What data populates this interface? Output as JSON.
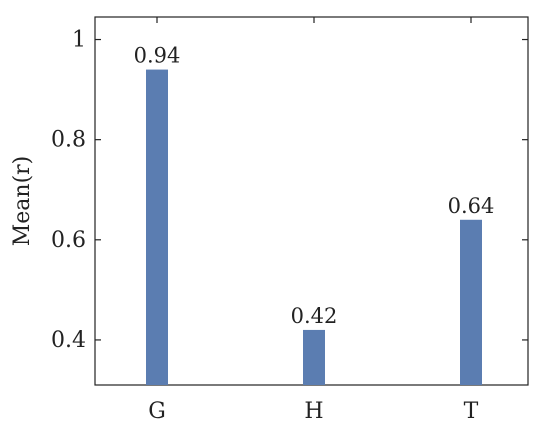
{
  "chart_data": {
    "type": "bar",
    "title": "",
    "xlabel": "",
    "ylabel": "Mean(r)",
    "categories": [
      "G",
      "H",
      "T"
    ],
    "values": [
      0.94,
      0.42,
      0.64
    ],
    "data_labels": [
      "0.94",
      "0.42",
      "0.64"
    ],
    "ylim": [
      0.31,
      1.045
    ],
    "yticks": [
      0.4,
      0.6,
      0.8,
      1.0
    ],
    "ytick_labels": [
      "0.4",
      "0.6",
      "0.8",
      "1"
    ],
    "grid": false,
    "legend": "none",
    "bar_color": "#5b7db1",
    "axis_color": "#222222"
  }
}
